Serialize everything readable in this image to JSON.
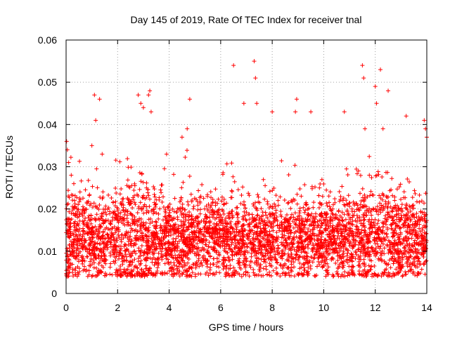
{
  "chart_data": {
    "type": "scatter",
    "title": "Day 145 of 2019, Rate Of TEC Index for receiver tnal",
    "xlabel": "GPS time / hours",
    "ylabel": "ROTI / TECUs",
    "xlim": [
      0,
      14
    ],
    "ylim": [
      0,
      0.06
    ],
    "xticks": [
      "0",
      "2",
      "4",
      "6",
      "8",
      "10",
      "12",
      "14"
    ],
    "yticks": [
      "0",
      "0.01",
      "0.02",
      "0.03",
      "0.04",
      "0.05",
      "0.06"
    ],
    "grid": true,
    "marker": "+",
    "series": [
      {
        "name": "ROTI",
        "color": "#ff0000",
        "points": [
          [
            0.02,
            0.036
          ],
          [
            0.05,
            0.034
          ],
          [
            0.1,
            0.031
          ],
          [
            0.2,
            0.028
          ],
          [
            0.3,
            0.026
          ],
          [
            1.0,
            0.035
          ],
          [
            1.1,
            0.047
          ],
          [
            1.15,
            0.041
          ],
          [
            1.3,
            0.046
          ],
          [
            1.4,
            0.033
          ],
          [
            2.8,
            0.047
          ],
          [
            2.9,
            0.045
          ],
          [
            3.0,
            0.044
          ],
          [
            3.2,
            0.047
          ],
          [
            3.25,
            0.048
          ],
          [
            3.3,
            0.043
          ],
          [
            3.9,
            0.033
          ],
          [
            4.5,
            0.037
          ],
          [
            4.7,
            0.039
          ],
          [
            4.8,
            0.046
          ],
          [
            6.5,
            0.054
          ],
          [
            6.9,
            0.045
          ],
          [
            7.3,
            0.055
          ],
          [
            7.35,
            0.051
          ],
          [
            7.4,
            0.045
          ],
          [
            8.0,
            0.043
          ],
          [
            8.9,
            0.043
          ],
          [
            8.95,
            0.046
          ],
          [
            9.5,
            0.043
          ],
          [
            10.8,
            0.043
          ],
          [
            11.5,
            0.054
          ],
          [
            11.55,
            0.051
          ],
          [
            11.6,
            0.039
          ],
          [
            12.0,
            0.049
          ],
          [
            12.05,
            0.045
          ],
          [
            12.2,
            0.053
          ],
          [
            12.3,
            0.039
          ],
          [
            12.5,
            0.048
          ],
          [
            13.2,
            0.042
          ],
          [
            13.9,
            0.041
          ],
          [
            13.95,
            0.039
          ],
          [
            14.0,
            0.037
          ]
        ],
        "bulk_description_range": [
          0.004,
          0.03
        ]
      }
    ]
  }
}
